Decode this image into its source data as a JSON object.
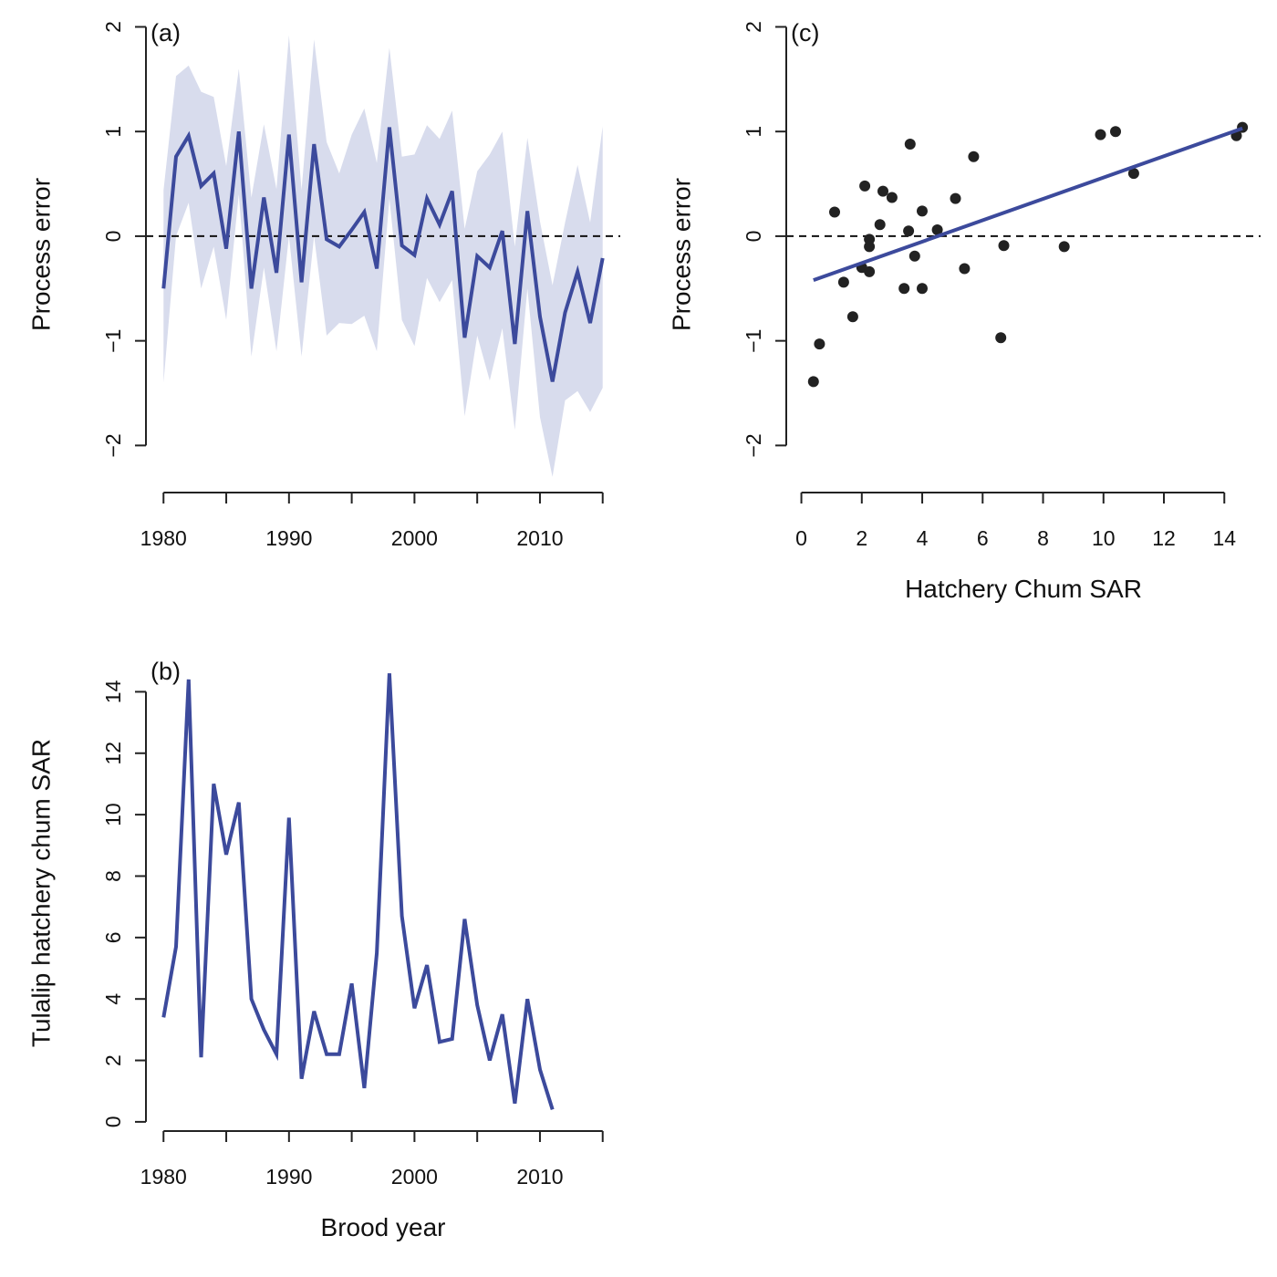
{
  "colors": {
    "series": "#3c4a9c",
    "band": "#d8dced",
    "points": "#222222",
    "axis": "#222222"
  },
  "chart_data": [
    {
      "id": "a",
      "type": "line",
      "panel_label": "(a)",
      "xlabel": "",
      "ylabel": "Process error",
      "xlim": [
        1978.6,
        2016.4
      ],
      "ylim": [
        -2.45,
        2.1
      ],
      "xticks": [
        1980,
        1985,
        1990,
        1995,
        2000,
        2005,
        2010,
        2015
      ],
      "xtick_labels": [
        "1980",
        "",
        "1990",
        "",
        "2000",
        "",
        "2010",
        ""
      ],
      "yticks": [
        -2,
        -1,
        0,
        1,
        2
      ],
      "ytick_labels": [
        "−2",
        "−1",
        "0",
        "1",
        "2"
      ],
      "reference_line": 0,
      "x": [
        1980,
        1981,
        1982,
        1983,
        1984,
        1985,
        1986,
        1987,
        1988,
        1989,
        1990,
        1991,
        1992,
        1993,
        1994,
        1995,
        1996,
        1997,
        1998,
        1999,
        2000,
        2001,
        2002,
        2003,
        2004,
        2005,
        2006,
        2007,
        2008,
        2009,
        2010,
        2011,
        2012,
        2013,
        2014,
        2015
      ],
      "y": [
        -0.5,
        0.76,
        0.96,
        0.48,
        0.6,
        -0.12,
        1.0,
        -0.5,
        0.37,
        -0.35,
        0.97,
        -0.44,
        0.88,
        -0.03,
        -0.1,
        0.06,
        0.23,
        -0.31,
        1.04,
        -0.09,
        -0.18,
        0.36,
        0.11,
        0.43,
        -0.97,
        -0.19,
        -0.3,
        0.05,
        -1.03,
        0.24,
        -0.77,
        -1.39,
        -0.73,
        -0.34,
        -0.83,
        -0.21
      ],
      "upper": [
        0.44,
        1.53,
        1.63,
        1.38,
        1.33,
        0.67,
        1.6,
        0.37,
        1.07,
        0.45,
        1.92,
        0.44,
        1.88,
        0.9,
        0.6,
        0.97,
        1.22,
        0.7,
        1.8,
        0.76,
        0.78,
        1.06,
        0.93,
        1.2,
        0.07,
        0.62,
        0.78,
        1.0,
        -0.1,
        0.94,
        0.14,
        -0.47,
        0.13,
        0.68,
        0.13,
        1.05
      ],
      "lower": [
        -1.4,
        0.0,
        0.32,
        -0.5,
        -0.1,
        -0.8,
        0.4,
        -1.15,
        -0.3,
        -1.1,
        0.0,
        -1.15,
        0.0,
        -0.95,
        -0.83,
        -0.84,
        -0.76,
        -1.1,
        0.36,
        -0.8,
        -1.05,
        -0.4,
        -0.63,
        -0.42,
        -1.72,
        -0.95,
        -1.38,
        -0.88,
        -1.85,
        -0.5,
        -1.73,
        -2.3,
        -1.57,
        -1.48,
        -1.68,
        -1.45
      ]
    },
    {
      "id": "b",
      "type": "line",
      "panel_label": "(b)",
      "xlabel": "Brood year",
      "ylabel": "Tulalip hatchery chum SAR",
      "xlim": [
        1978.6,
        2016.4
      ],
      "ylim": [
        -0.3,
        15.2
      ],
      "xticks": [
        1980,
        1985,
        1990,
        1995,
        2000,
        2005,
        2010,
        2015
      ],
      "xtick_labels": [
        "1980",
        "",
        "1990",
        "",
        "2000",
        "",
        "2010",
        ""
      ],
      "yticks": [
        0,
        2,
        4,
        6,
        8,
        10,
        12,
        14
      ],
      "ytick_labels": [
        "0",
        "2",
        "4",
        "6",
        "8",
        "10",
        "12",
        "14"
      ],
      "x": [
        1980,
        1981,
        1982,
        1983,
        1984,
        1985,
        1986,
        1987,
        1988,
        1989,
        1990,
        1991,
        1992,
        1993,
        1994,
        1995,
        1996,
        1997,
        1998,
        1999,
        2000,
        2001,
        2002,
        2003,
        2004,
        2005,
        2006,
        2007,
        2008,
        2009,
        2010,
        2011
      ],
      "y": [
        3.4,
        5.7,
        14.4,
        2.1,
        11.0,
        8.7,
        10.4,
        4.0,
        3.0,
        2.2,
        9.9,
        1.4,
        3.6,
        2.2,
        2.2,
        4.5,
        1.1,
        5.5,
        14.6,
        6.7,
        3.7,
        5.1,
        2.6,
        2.7,
        6.6,
        3.8,
        2.0,
        3.5,
        0.6,
        4.0,
        1.7,
        0.4
      ]
    },
    {
      "id": "c",
      "type": "scatter",
      "panel_label": "(c)",
      "xlabel": "Hatchery Chum SAR",
      "ylabel": "Process error",
      "xlim": [
        -0.5,
        15.2
      ],
      "ylim": [
        -2.45,
        2.1
      ],
      "xticks": [
        0,
        2,
        4,
        6,
        8,
        10,
        12,
        14
      ],
      "xtick_labels": [
        "0",
        "2",
        "4",
        "6",
        "8",
        "10",
        "12",
        "14"
      ],
      "yticks": [
        -2,
        -1,
        0,
        1,
        2
      ],
      "ytick_labels": [
        "−2",
        "−1",
        "0",
        "1",
        "2"
      ],
      "reference_line": 0,
      "points": [
        [
          0.4,
          -1.39
        ],
        [
          0.6,
          -1.03
        ],
        [
          1.1,
          0.23
        ],
        [
          1.4,
          -0.44
        ],
        [
          1.7,
          -0.77
        ],
        [
          2.0,
          -0.3
        ],
        [
          2.1,
          0.48
        ],
        [
          2.25,
          -0.34
        ],
        [
          2.25,
          -0.03
        ],
        [
          2.25,
          -0.1
        ],
        [
          2.6,
          0.11
        ],
        [
          2.7,
          0.43
        ],
        [
          3.0,
          0.37
        ],
        [
          3.4,
          -0.5
        ],
        [
          3.55,
          0.05
        ],
        [
          3.6,
          0.88
        ],
        [
          3.75,
          -0.19
        ],
        [
          4.0,
          0.24
        ],
        [
          4.0,
          -0.5
        ],
        [
          4.5,
          0.06
        ],
        [
          5.1,
          0.36
        ],
        [
          5.4,
          -0.31
        ],
        [
          5.7,
          0.76
        ],
        [
          6.6,
          -0.97
        ],
        [
          6.7,
          -0.09
        ],
        [
          8.7,
          -0.1
        ],
        [
          9.9,
          0.97
        ],
        [
          10.4,
          1.0
        ],
        [
          11.0,
          0.6
        ],
        [
          14.4,
          0.96
        ],
        [
          14.6,
          1.04
        ]
      ],
      "fit": {
        "x": [
          0.4,
          14.6
        ],
        "y": [
          -0.42,
          1.03
        ]
      }
    }
  ]
}
